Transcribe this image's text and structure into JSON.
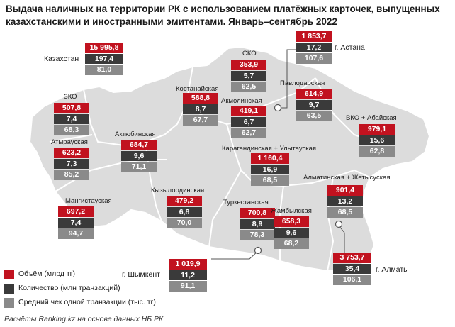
{
  "title": "Выдача наличных на территории РК с использованием платёжных карточек, выпущенных казахстанскими и иностранными эмитентами. Январь–сентябрь 2022",
  "legend": [
    {
      "label": "Объём (млрд тг)",
      "color": "#c1121f"
    },
    {
      "label": "Количество (млн транзакций)",
      "color": "#3a3a3a"
    },
    {
      "label": "Средний чек одной транзакции (тыс. тг)",
      "color": "#8a8a8a"
    }
  ],
  "source": "Расчёты Ranking.kz на основе данных НБ РК",
  "regions": {
    "kazakhstan": {
      "name": "Казахстан",
      "volume": "15 995,8",
      "count": "197,4",
      "avg": "81,0"
    },
    "astana": {
      "name": "г. Астана",
      "volume": "1 853,7",
      "count": "17,2",
      "avg": "107,6"
    },
    "sko": {
      "name": "СКО",
      "volume": "353,9",
      "count": "5,7",
      "avg": "62,5"
    },
    "pavlodar": {
      "name": "Павлодарская",
      "volume": "614,9",
      "count": "9,7",
      "avg": "63,5"
    },
    "kostanay": {
      "name": "Костанайская",
      "volume": "588,8",
      "count": "8,7",
      "avg": "67,7"
    },
    "akmola": {
      "name": "Акмолинская",
      "volume": "419,1",
      "count": "6,7",
      "avg": "62,7"
    },
    "zko": {
      "name": "ЗКО",
      "volume": "507,8",
      "count": "7,4",
      "avg": "68,3"
    },
    "vko": {
      "name": "ВКО + Абайская",
      "volume": "979,1",
      "count": "15,6",
      "avg": "62,8"
    },
    "atyrau": {
      "name": "Атырауская",
      "volume": "623,2",
      "count": "7,3",
      "avg": "85,2"
    },
    "aktobe": {
      "name": "Актюбинская",
      "volume": "684,7",
      "count": "9,6",
      "avg": "71,1"
    },
    "karaganda": {
      "name": "Карагандинская + Улытауская",
      "volume": "1 160,4",
      "count": "16,9",
      "avg": "68,5"
    },
    "almaty_obl": {
      "name": "Алматинская + Жетысуская",
      "volume": "901,4",
      "count": "13,2",
      "avg": "68,5"
    },
    "mangystau": {
      "name": "Мангистауская",
      "volume": "697,2",
      "count": "7,4",
      "avg": "94,7"
    },
    "kyzylorda": {
      "name": "Кызылординская",
      "volume": "479,2",
      "count": "6,8",
      "avg": "70,0"
    },
    "turkestan": {
      "name": "Туркестанская",
      "volume": "700,8",
      "count": "8,9",
      "avg": "78,3"
    },
    "zhambyl": {
      "name": "Жамбылская",
      "volume": "658,3",
      "count": "9,6",
      "avg": "68,2"
    },
    "shymkent": {
      "name": "г. Шымкент",
      "volume": "1 019,9",
      "count": "11,2",
      "avg": "91,1"
    },
    "almaty": {
      "name": "г. Алматы",
      "volume": "3 753,7",
      "count": "35,4",
      "avg": "106,1"
    }
  }
}
